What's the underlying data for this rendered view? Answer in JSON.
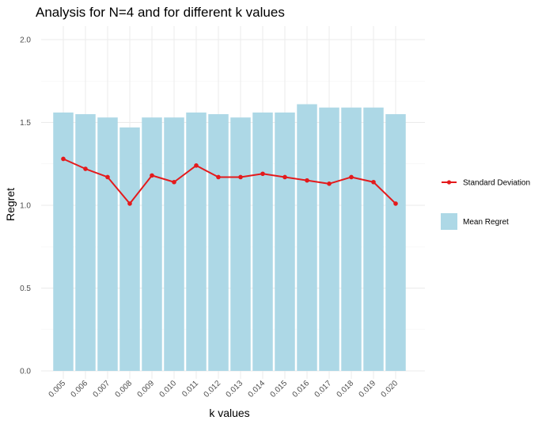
{
  "chart_data": {
    "type": "bar",
    "title": "Analysis for N=4 and for different k values",
    "xlabel": "k values",
    "ylabel": "Regret",
    "categories": [
      "0.005",
      "0.006",
      "0.007",
      "0.008",
      "0.009",
      "0.010",
      "0.011",
      "0.012",
      "0.013",
      "0.014",
      "0.015",
      "0.016",
      "0.017",
      "0.018",
      "0.019",
      "0.020"
    ],
    "ylim": [
      0,
      2.0
    ],
    "yticks": [
      "0.0",
      "0.5",
      "1.0",
      "1.5",
      "2.0"
    ],
    "grid": true,
    "legend_position": "right",
    "series": [
      {
        "name": "Mean Regret",
        "kind": "bar",
        "color": "#add8e6",
        "values": [
          1.56,
          1.55,
          1.53,
          1.47,
          1.53,
          1.53,
          1.56,
          1.55,
          1.53,
          1.56,
          1.56,
          1.61,
          1.59,
          1.59,
          1.59,
          1.55
        ]
      },
      {
        "name": "Standard Deviation",
        "kind": "line",
        "color": "#e41a1c",
        "values": [
          1.28,
          1.22,
          1.17,
          1.01,
          1.18,
          1.14,
          1.24,
          1.17,
          1.17,
          1.19,
          1.17,
          1.15,
          1.13,
          1.17,
          1.14,
          1.01
        ]
      }
    ]
  }
}
